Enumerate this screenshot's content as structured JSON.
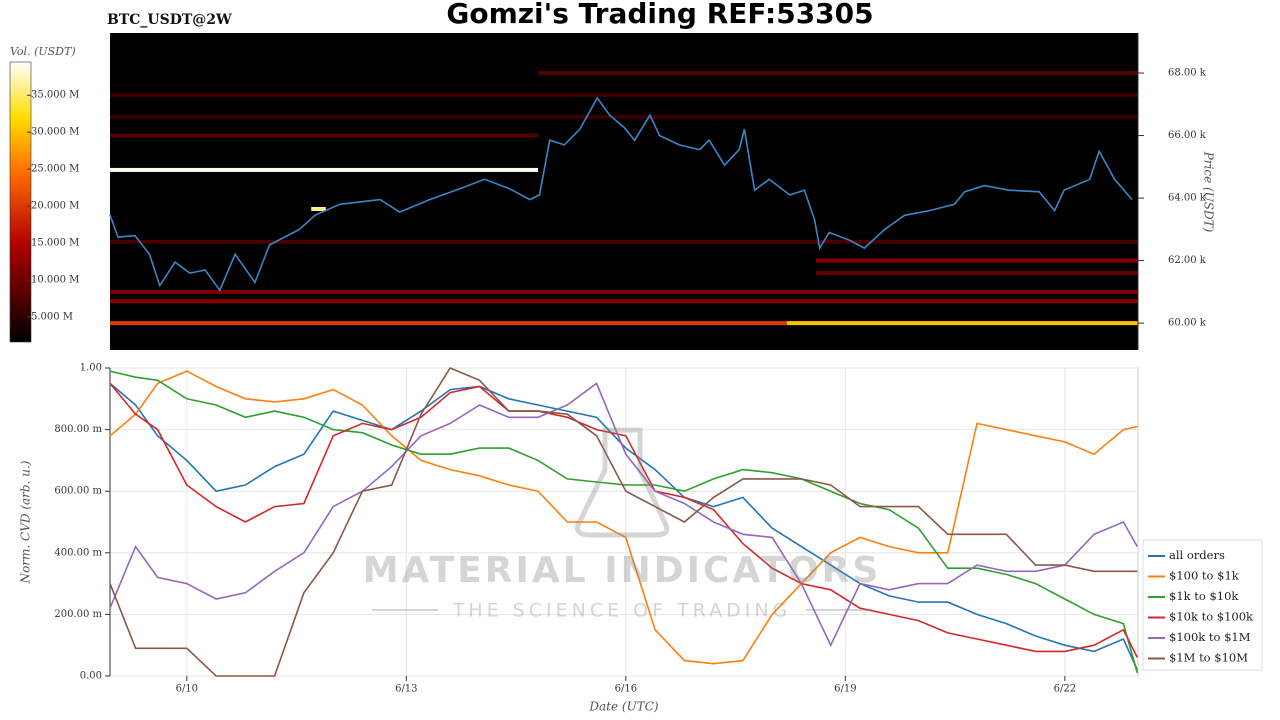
{
  "header": {
    "title": "Gomzi's Trading REF:53305"
  },
  "watermark": {
    "brand": "MATERIAL INDICATORS",
    "tagline": "THE SCIENCE OF TRADING"
  },
  "chart_data": [
    {
      "type": "heatmap",
      "title": "BTC_USDT@2W",
      "y_label": "Price (USDT)",
      "color": "#3a86c8",
      "xlim": [
        8.95,
        23.0
      ],
      "ylim": [
        59140,
        69280
      ],
      "yticks": [
        {
          "value": 60000,
          "label": "60.00 k"
        },
        {
          "value": 62000,
          "label": "62.00 k"
        },
        {
          "value": 64000,
          "label": "64.00 k"
        },
        {
          "value": 66000,
          "label": "66.00 k"
        },
        {
          "value": 68000,
          "label": "68.00 k"
        }
      ],
      "colorbar": {
        "label": "Vol. (USDT)",
        "lim": [
          1600000,
          39500000
        ],
        "ticks": [
          {
            "value": 5000000,
            "label": "5.000 M"
          },
          {
            "value": 10000000,
            "label": "10.000 M"
          },
          {
            "value": 15000000,
            "label": "15.000 M"
          },
          {
            "value": 20000000,
            "label": "20.000 M"
          },
          {
            "value": 25000000,
            "label": "25.000 M"
          },
          {
            "value": 30000000,
            "label": "30.000 M"
          },
          {
            "value": 35000000,
            "label": "35.000 M"
          }
        ]
      },
      "heatmap": [
        {
          "start": 8.95,
          "end": 18.2,
          "price": 60000,
          "volume": 20000000
        },
        {
          "start": 18.2,
          "end": 23.0,
          "price": 60000,
          "volume": 30000000
        },
        {
          "start": 8.95,
          "end": 23.0,
          "price": 60700,
          "volume": 12000000
        },
        {
          "start": 8.95,
          "end": 23.0,
          "price": 61000,
          "volume": 11000000
        },
        {
          "start": 18.6,
          "end": 23.0,
          "price": 61600,
          "volume": 9000000
        },
        {
          "start": 18.6,
          "end": 23.0,
          "price": 62000,
          "volume": 12000000
        },
        {
          "start": 8.95,
          "end": 23.0,
          "price": 62600,
          "volume": 7000000
        },
        {
          "start": 11.7,
          "end": 11.9,
          "price": 63650,
          "volume": 36000000
        },
        {
          "start": 8.95,
          "end": 14.8,
          "price": 64900,
          "volume": 39000000
        },
        {
          "start": 8.95,
          "end": 14.8,
          "price": 66000,
          "volume": 8000000
        },
        {
          "start": 8.95,
          "end": 23.0,
          "price": 66600,
          "volume": 6000000
        },
        {
          "start": 8.95,
          "end": 23.0,
          "price": 67300,
          "volume": 6000000
        },
        {
          "start": 14.8,
          "end": 23.0,
          "price": 68000,
          "volume": 8000000
        }
      ],
      "x": [
        8.95,
        9.06,
        9.29,
        9.49,
        9.63,
        9.84,
        10.04,
        10.25,
        10.45,
        10.66,
        10.93,
        11.13,
        11.54,
        11.75,
        12.09,
        12.64,
        12.91,
        13.32,
        13.73,
        14.07,
        14.41,
        14.69,
        14.82,
        14.96,
        15.16,
        15.37,
        15.61,
        15.78,
        15.98,
        16.12,
        16.33,
        16.46,
        16.73,
        17.01,
        17.14,
        17.35,
        17.55,
        17.62,
        17.76,
        17.96,
        18.24,
        18.44,
        18.58,
        18.65,
        18.78,
        19.06,
        19.26,
        19.54,
        19.81,
        20.15,
        20.49,
        20.63,
        20.9,
        21.24,
        21.65,
        21.86,
        21.99,
        22.34,
        22.47,
        22.68,
        22.92
      ],
      "values": [
        63460,
        62750,
        62800,
        62200,
        61200,
        61950,
        61600,
        61700,
        61050,
        62200,
        61300,
        62500,
        63000,
        63450,
        63800,
        63950,
        63550,
        63950,
        64300,
        64600,
        64300,
        63950,
        64100,
        65850,
        65700,
        66200,
        67200,
        66650,
        66250,
        65850,
        66650,
        66000,
        65700,
        65550,
        65850,
        65050,
        65550,
        66200,
        64250,
        64600,
        64100,
        64250,
        63300,
        62400,
        62900,
        62650,
        62400,
        63000,
        63450,
        63600,
        63800,
        64200,
        64400,
        64250,
        64200,
        63600,
        64250,
        64600,
        65500,
        64600,
        63950
      ]
    },
    {
      "type": "line",
      "x_label": "Date (UTC)",
      "y_label": "Norm. CVD (arb. u.)",
      "grid": true,
      "xlim": [
        8.95,
        23.0
      ],
      "xticks": [
        {
          "value": 10,
          "label": "6/10"
        },
        {
          "value": 13,
          "label": "6/13"
        },
        {
          "value": 16,
          "label": "6/16"
        },
        {
          "value": 19,
          "label": "6/19"
        },
        {
          "value": 22,
          "label": "6/22"
        }
      ],
      "ylim": [
        0,
        1
      ],
      "yticks": [
        {
          "value": 0,
          "label": "0.00"
        },
        {
          "value": 0.2,
          "label": "200.00 m"
        },
        {
          "value": 0.4,
          "label": "400.00 m"
        },
        {
          "value": 0.6,
          "label": "600.00 m"
        },
        {
          "value": 0.8,
          "label": "800.00 m"
        },
        {
          "value": 1,
          "label": "1.00"
        }
      ],
      "x": [
        8.95,
        9.3,
        9.6,
        10.0,
        10.4,
        10.8,
        11.2,
        11.6,
        12.0,
        12.4,
        12.8,
        13.2,
        13.6,
        14.0,
        14.4,
        14.8,
        15.2,
        15.6,
        16.0,
        16.4,
        16.8,
        17.2,
        17.6,
        18.0,
        18.4,
        18.8,
        19.2,
        19.6,
        20.0,
        20.4,
        20.8,
        21.2,
        21.6,
        22.0,
        22.4,
        22.8,
        22.99
      ],
      "series": [
        {
          "name": "all orders",
          "color": "#1f77b4",
          "values": [
            0.95,
            0.88,
            0.78,
            0.7,
            0.6,
            0.62,
            0.68,
            0.72,
            0.86,
            0.83,
            0.8,
            0.86,
            0.93,
            0.94,
            0.9,
            0.88,
            0.86,
            0.84,
            0.74,
            0.67,
            0.58,
            0.55,
            0.58,
            0.48,
            0.42,
            0.36,
            0.3,
            0.26,
            0.24,
            0.24,
            0.2,
            0.17,
            0.13,
            0.1,
            0.08,
            0.12,
            0.02
          ]
        },
        {
          "name": "$100 to $1k",
          "color": "#ff7f0e",
          "values": [
            0.78,
            0.85,
            0.95,
            0.99,
            0.94,
            0.9,
            0.89,
            0.9,
            0.93,
            0.88,
            0.78,
            0.7,
            0.67,
            0.65,
            0.62,
            0.6,
            0.5,
            0.5,
            0.45,
            0.15,
            0.05,
            0.04,
            0.05,
            0.2,
            0.3,
            0.4,
            0.45,
            0.42,
            0.4,
            0.4,
            0.82,
            0.8,
            0.78,
            0.76,
            0.72,
            0.8,
            0.81
          ]
        },
        {
          "name": "$1k to $10k",
          "color": "#2ca02c",
          "values": [
            0.99,
            0.97,
            0.96,
            0.9,
            0.88,
            0.84,
            0.86,
            0.84,
            0.8,
            0.79,
            0.75,
            0.72,
            0.72,
            0.74,
            0.74,
            0.7,
            0.64,
            0.63,
            0.62,
            0.62,
            0.6,
            0.64,
            0.67,
            0.66,
            0.64,
            0.6,
            0.56,
            0.54,
            0.48,
            0.35,
            0.35,
            0.33,
            0.3,
            0.25,
            0.2,
            0.17,
            0.01
          ]
        },
        {
          "name": "$10k to $100k",
          "color": "#d62728",
          "values": [
            0.95,
            0.85,
            0.8,
            0.62,
            0.55,
            0.5,
            0.55,
            0.56,
            0.78,
            0.82,
            0.8,
            0.84,
            0.92,
            0.94,
            0.86,
            0.86,
            0.84,
            0.8,
            0.78,
            0.6,
            0.58,
            0.54,
            0.43,
            0.35,
            0.3,
            0.28,
            0.22,
            0.2,
            0.18,
            0.14,
            0.12,
            0.1,
            0.08,
            0.08,
            0.1,
            0.15,
            0.06
          ]
        },
        {
          "name": "$100k to $1M",
          "color": "#9467bd",
          "values": [
            0.22,
            0.42,
            0.32,
            0.3,
            0.25,
            0.27,
            0.34,
            0.4,
            0.55,
            0.6,
            0.68,
            0.78,
            0.82,
            0.88,
            0.84,
            0.84,
            0.88,
            0.95,
            0.72,
            0.6,
            0.56,
            0.5,
            0.46,
            0.45,
            0.3,
            0.1,
            0.3,
            0.28,
            0.3,
            0.3,
            0.36,
            0.34,
            0.34,
            0.36,
            0.46,
            0.5,
            0.42
          ]
        },
        {
          "name": "$1M to $10M",
          "color": "#8c564b",
          "values": [
            0.3,
            0.09,
            0.09,
            0.09,
            0.0,
            0.0,
            0.0,
            0.27,
            0.4,
            0.6,
            0.62,
            0.85,
            1.0,
            0.96,
            0.86,
            0.86,
            0.85,
            0.78,
            0.6,
            0.55,
            0.5,
            0.58,
            0.64,
            0.64,
            0.64,
            0.62,
            0.55,
            0.55,
            0.55,
            0.46,
            0.46,
            0.46,
            0.36,
            0.36,
            0.34,
            0.34,
            0.34
          ]
        }
      ]
    }
  ]
}
